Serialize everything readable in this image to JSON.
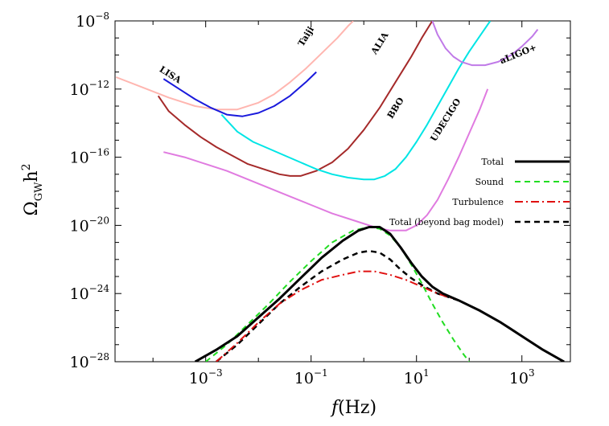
{
  "chart_data": {
    "type": "line",
    "xscale": "log",
    "yscale": "log",
    "xlim_log10": [
      -4.72,
      3.92
    ],
    "ylim_log10": [
      -28,
      -8
    ],
    "x_tick_labels": [
      {
        "exp": -3,
        "base": "10",
        "sup": "−3"
      },
      {
        "exp": -1,
        "base": "10",
        "sup": "−1"
      },
      {
        "exp": 1,
        "base": "10",
        "sup": "1"
      },
      {
        "exp": 3,
        "base": "10",
        "sup": "3"
      }
    ],
    "y_tick_labels": [
      {
        "exp": -8,
        "base": "10",
        "sup": "−8"
      },
      {
        "exp": -12,
        "base": "10",
        "sup": "−12"
      },
      {
        "exp": -16,
        "base": "10",
        "sup": "−16"
      },
      {
        "exp": -20,
        "base": "10",
        "sup": "−20"
      },
      {
        "exp": -24,
        "base": "10",
        "sup": "−24"
      },
      {
        "exp": -28,
        "base": "10",
        "sup": "−28"
      }
    ],
    "xlabel": {
      "f": "f",
      "unit": "(Hz)"
    },
    "ylabel": {
      "main": "Ω",
      "sub": "GW",
      "h": "h",
      "sup": "2"
    },
    "legend_position": "right",
    "sensitivity_curves": [
      {
        "name": "Taiji",
        "label": "Taiji",
        "color": "#ffb6b0",
        "points": [
          [
            -4.7,
            -11.3
          ],
          [
            -4.2,
            -11.9
          ],
          [
            -3.7,
            -12.5
          ],
          [
            -3.2,
            -13.0
          ],
          [
            -2.8,
            -13.2
          ],
          [
            -2.4,
            -13.2
          ],
          [
            -2.0,
            -12.8
          ],
          [
            -1.7,
            -12.3
          ],
          [
            -1.4,
            -11.6
          ],
          [
            -1.1,
            -10.8
          ],
          [
            -0.8,
            -9.9
          ],
          [
            -0.5,
            -9.0
          ],
          [
            -0.3,
            -8.3
          ],
          [
            -0.2,
            -8.0
          ]
        ]
      },
      {
        "name": "LISA",
        "label": "LISA",
        "color": "#1a1adc",
        "points": [
          [
            -3.8,
            -11.4
          ],
          [
            -3.5,
            -12.0
          ],
          [
            -3.2,
            -12.6
          ],
          [
            -2.9,
            -13.1
          ],
          [
            -2.6,
            -13.5
          ],
          [
            -2.3,
            -13.6
          ],
          [
            -2.0,
            -13.4
          ],
          [
            -1.7,
            -13.0
          ],
          [
            -1.4,
            -12.4
          ],
          [
            -1.1,
            -11.6
          ],
          [
            -0.9,
            -11.0
          ]
        ]
      },
      {
        "name": "ALIA",
        "label": "ALIA",
        "color": "#a52a2a",
        "points": [
          [
            -3.9,
            -12.4
          ],
          [
            -3.7,
            -13.3
          ],
          [
            -3.4,
            -14.1
          ],
          [
            -3.1,
            -14.8
          ],
          [
            -2.8,
            -15.4
          ],
          [
            -2.5,
            -15.9
          ],
          [
            -2.2,
            -16.4
          ],
          [
            -1.9,
            -16.7
          ],
          [
            -1.6,
            -17.0
          ],
          [
            -1.4,
            -17.1
          ],
          [
            -1.2,
            -17.1
          ],
          [
            -0.9,
            -16.8
          ],
          [
            -0.6,
            -16.3
          ],
          [
            -0.3,
            -15.5
          ],
          [
            0.0,
            -14.4
          ],
          [
            0.3,
            -13.1
          ],
          [
            0.6,
            -11.6
          ],
          [
            0.9,
            -10.1
          ],
          [
            1.1,
            -9.0
          ],
          [
            1.3,
            -8.0
          ]
        ]
      },
      {
        "name": "BBO",
        "label": "BBO",
        "color": "#00e5e5",
        "points": [
          [
            -2.7,
            -13.5
          ],
          [
            -2.4,
            -14.5
          ],
          [
            -2.1,
            -15.1
          ],
          [
            -1.8,
            -15.5
          ],
          [
            -1.5,
            -15.9
          ],
          [
            -1.2,
            -16.3
          ],
          [
            -0.9,
            -16.7
          ],
          [
            -0.6,
            -17.0
          ],
          [
            -0.3,
            -17.2
          ],
          [
            0.0,
            -17.3
          ],
          [
            0.2,
            -17.3
          ],
          [
            0.4,
            -17.1
          ],
          [
            0.6,
            -16.7
          ],
          [
            0.8,
            -16.0
          ],
          [
            1.0,
            -15.1
          ],
          [
            1.2,
            -14.1
          ],
          [
            1.4,
            -13.0
          ],
          [
            1.6,
            -11.9
          ],
          [
            1.8,
            -10.8
          ],
          [
            2.0,
            -9.8
          ],
          [
            2.2,
            -8.9
          ],
          [
            2.4,
            -8.0
          ]
        ]
      },
      {
        "name": "UDECIGO",
        "label": "UDECIGO",
        "color": "#e07be0",
        "points": [
          [
            -3.8,
            -15.7
          ],
          [
            -3.4,
            -16.0
          ],
          [
            -3.0,
            -16.4
          ],
          [
            -2.6,
            -16.8
          ],
          [
            -2.2,
            -17.3
          ],
          [
            -1.8,
            -17.8
          ],
          [
            -1.4,
            -18.3
          ],
          [
            -1.0,
            -18.8
          ],
          [
            -0.6,
            -19.3
          ],
          [
            -0.2,
            -19.7
          ],
          [
            0.2,
            -20.1
          ],
          [
            0.5,
            -20.3
          ],
          [
            0.8,
            -20.3
          ],
          [
            1.0,
            -20.0
          ],
          [
            1.2,
            -19.4
          ],
          [
            1.4,
            -18.5
          ],
          [
            1.6,
            -17.3
          ],
          [
            1.8,
            -16.0
          ],
          [
            2.0,
            -14.6
          ],
          [
            2.2,
            -13.2
          ],
          [
            2.35,
            -12.0
          ]
        ]
      },
      {
        "name": "aLIGO+",
        "label": "aLIGO+",
        "color": "#c07ae8",
        "points": [
          [
            1.3,
            -8.0
          ],
          [
            1.4,
            -8.8
          ],
          [
            1.55,
            -9.6
          ],
          [
            1.7,
            -10.1
          ],
          [
            1.85,
            -10.4
          ],
          [
            2.05,
            -10.6
          ],
          [
            2.3,
            -10.6
          ],
          [
            2.55,
            -10.4
          ],
          [
            2.8,
            -10.0
          ],
          [
            3.0,
            -9.5
          ],
          [
            3.2,
            -8.9
          ],
          [
            3.3,
            -8.5
          ]
        ]
      }
    ],
    "series": [
      {
        "name": "Total",
        "color": "#000000",
        "style": "solid",
        "width": 3,
        "points": [
          [
            -3.2,
            -28.0
          ],
          [
            -2.8,
            -27.3
          ],
          [
            -2.4,
            -26.5
          ],
          [
            -2.0,
            -25.4
          ],
          [
            -1.6,
            -24.3
          ],
          [
            -1.2,
            -23.1
          ],
          [
            -0.8,
            -21.9
          ],
          [
            -0.4,
            -20.9
          ],
          [
            -0.1,
            -20.3
          ],
          [
            0.1,
            -20.1
          ],
          [
            0.3,
            -20.1
          ],
          [
            0.5,
            -20.5
          ],
          [
            0.7,
            -21.3
          ],
          [
            0.9,
            -22.2
          ],
          [
            1.1,
            -23.0
          ],
          [
            1.3,
            -23.6
          ],
          [
            1.5,
            -24.0
          ],
          [
            1.8,
            -24.4
          ],
          [
            2.2,
            -25.0
          ],
          [
            2.6,
            -25.7
          ],
          [
            3.0,
            -26.5
          ],
          [
            3.4,
            -27.3
          ],
          [
            3.8,
            -28.0
          ]
        ]
      },
      {
        "name": "Sound",
        "color": "#22dd22",
        "style": "dash",
        "width": 2,
        "points": [
          [
            -3.0,
            -28.0
          ],
          [
            -2.6,
            -27.0
          ],
          [
            -2.2,
            -25.8
          ],
          [
            -1.8,
            -24.6
          ],
          [
            -1.4,
            -23.3
          ],
          [
            -1.0,
            -22.1
          ],
          [
            -0.6,
            -21.0
          ],
          [
            -0.2,
            -20.3
          ],
          [
            0.1,
            -20.1
          ],
          [
            0.3,
            -20.2
          ],
          [
            0.5,
            -20.6
          ],
          [
            0.7,
            -21.3
          ],
          [
            0.9,
            -22.3
          ],
          [
            1.1,
            -23.4
          ],
          [
            1.3,
            -24.6
          ],
          [
            1.5,
            -25.7
          ],
          [
            1.7,
            -26.7
          ],
          [
            1.9,
            -27.6
          ],
          [
            2.0,
            -28.0
          ]
        ]
      },
      {
        "name": "Turbulence",
        "color": "#e01010",
        "style": "dashdot",
        "width": 2,
        "points": [
          [
            -2.8,
            -28.0
          ],
          [
            -2.4,
            -26.9
          ],
          [
            -2.0,
            -25.7
          ],
          [
            -1.6,
            -24.6
          ],
          [
            -1.2,
            -23.8
          ],
          [
            -0.8,
            -23.2
          ],
          [
            -0.4,
            -22.9
          ],
          [
            -0.1,
            -22.7
          ],
          [
            0.2,
            -22.7
          ],
          [
            0.5,
            -22.9
          ],
          [
            0.8,
            -23.2
          ],
          [
            1.1,
            -23.6
          ],
          [
            1.4,
            -24.0
          ],
          [
            1.8,
            -24.4
          ],
          [
            2.2,
            -25.0
          ],
          [
            2.6,
            -25.7
          ],
          [
            3.0,
            -26.5
          ],
          [
            3.4,
            -27.3
          ],
          [
            3.8,
            -28.0
          ]
        ]
      },
      {
        "name": "Total (beyond bag model)",
        "color": "#000000",
        "style": "dash",
        "width": 2.5,
        "points": [
          [
            -2.8,
            -28.0
          ],
          [
            -2.4,
            -27.0
          ],
          [
            -2.0,
            -25.8
          ],
          [
            -1.6,
            -24.6
          ],
          [
            -1.2,
            -23.6
          ],
          [
            -0.8,
            -22.7
          ],
          [
            -0.4,
            -22.0
          ],
          [
            -0.1,
            -21.6
          ],
          [
            0.1,
            -21.5
          ],
          [
            0.3,
            -21.6
          ],
          [
            0.5,
            -22.0
          ],
          [
            0.7,
            -22.6
          ],
          [
            0.9,
            -23.1
          ],
          [
            1.1,
            -23.5
          ],
          [
            1.4,
            -24.0
          ],
          [
            1.8,
            -24.4
          ],
          [
            2.2,
            -25.0
          ],
          [
            2.6,
            -25.7
          ],
          [
            3.0,
            -26.5
          ],
          [
            3.4,
            -27.3
          ],
          [
            3.8,
            -28.0
          ]
        ]
      }
    ]
  }
}
